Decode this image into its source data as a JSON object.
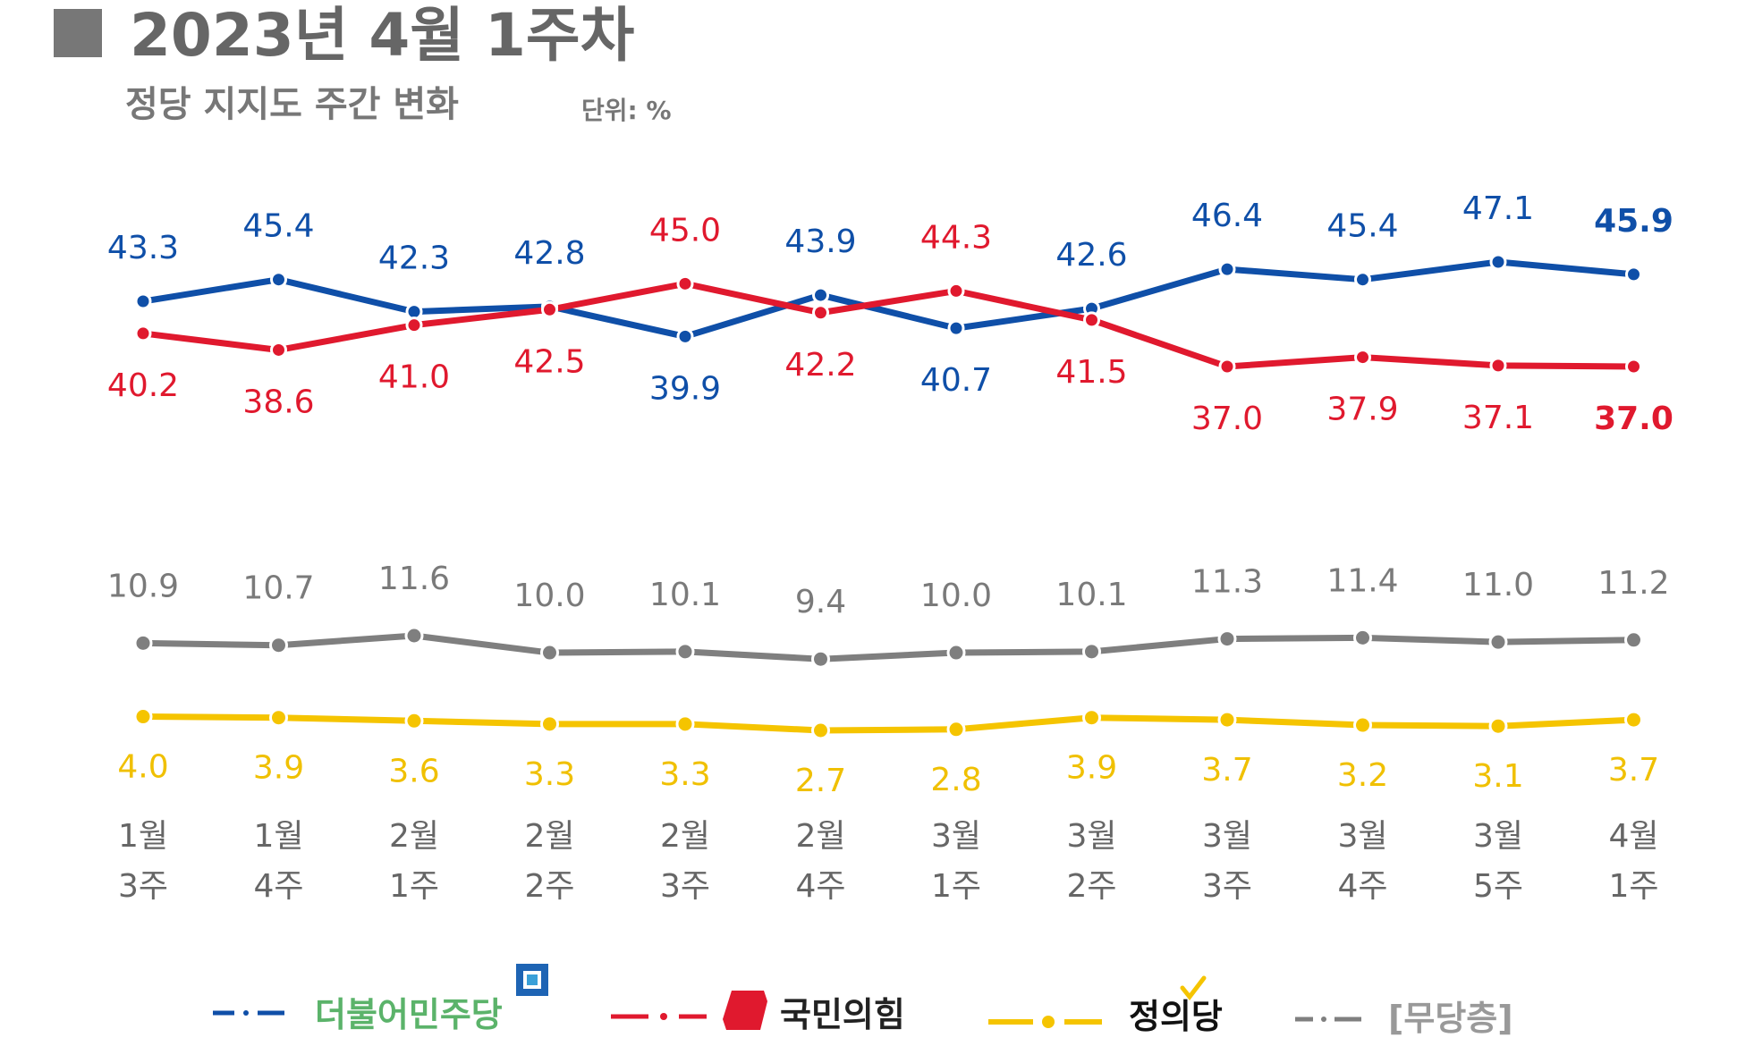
{
  "header": {
    "title": "2023년 4월 1주차",
    "subtitle": "정당 지지도 주간 변화",
    "unit": "단위: %"
  },
  "chart_data": {
    "type": "line",
    "title": "정당 지지도 주간 변화",
    "unit": "%",
    "categories": [
      [
        "1월",
        "3주"
      ],
      [
        "1월",
        "4주"
      ],
      [
        "2월",
        "1주"
      ],
      [
        "2월",
        "2주"
      ],
      [
        "2월",
        "3주"
      ],
      [
        "2월",
        "4주"
      ],
      [
        "3월",
        "1주"
      ],
      [
        "3월",
        "2주"
      ],
      [
        "3월",
        "3주"
      ],
      [
        "3월",
        "4주"
      ],
      [
        "3월",
        "5주"
      ],
      [
        "4월",
        "1주"
      ]
    ],
    "series": [
      {
        "id": "democratic",
        "name": "더불어민주당",
        "color": "#0f4fa8",
        "values": [
          43.3,
          45.4,
          42.3,
          42.8,
          39.9,
          43.9,
          40.7,
          42.6,
          46.4,
          45.4,
          47.1,
          45.9
        ],
        "labels": [
          "43.3",
          "45.4",
          "42.3",
          "42.8",
          "39.9",
          "43.9",
          "40.7",
          "42.6",
          "46.4",
          "45.4",
          "47.1",
          "45.9"
        ]
      },
      {
        "id": "ppp",
        "name": "국민의힘",
        "color": "#e0192e",
        "values": [
          40.2,
          38.6,
          41.0,
          42.5,
          45.0,
          42.2,
          44.3,
          41.5,
          37.0,
          37.9,
          37.1,
          37.0
        ],
        "labels": [
          "40.2",
          "38.6",
          "41.0",
          "42.5",
          "45.0",
          "42.2",
          "44.3",
          "41.5",
          "37.0",
          "37.9",
          "37.1",
          "37.0"
        ]
      },
      {
        "id": "independent",
        "name": "[무당층]",
        "color": "#7f7f7f",
        "values": [
          10.9,
          10.7,
          11.6,
          10.0,
          10.1,
          9.4,
          10.0,
          10.1,
          11.3,
          11.4,
          11.0,
          11.2
        ],
        "labels": [
          "10.9",
          "10.7",
          "11.6",
          "10.0",
          "10.1",
          "9.4",
          "10.0",
          "10.1",
          "11.3",
          "11.4",
          "11.0",
          "11.2"
        ]
      },
      {
        "id": "justice",
        "name": "정의당",
        "color": "#f5c400",
        "values": [
          4.0,
          3.9,
          3.6,
          3.3,
          3.3,
          2.7,
          2.8,
          3.9,
          3.7,
          3.2,
          3.1,
          3.7
        ],
        "labels": [
          "4.0",
          "3.9",
          "3.6",
          "3.3",
          "3.3",
          "2.7",
          "2.8",
          "3.9",
          "3.7",
          "3.2",
          "3.1",
          "3.7"
        ]
      }
    ],
    "legend": [
      "더불어민주당",
      "국민의힘",
      "정의당",
      "[무당층]"
    ],
    "legend_position": "bottom"
  }
}
